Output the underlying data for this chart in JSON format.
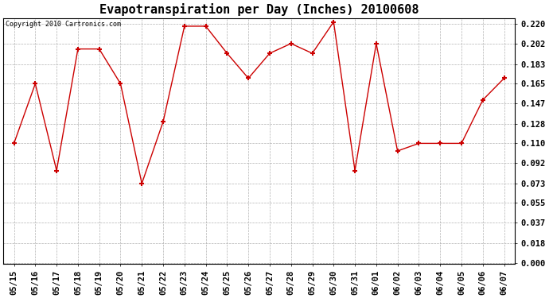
{
  "title": "Evapotranspiration per Day (Inches) 20100608",
  "copyright": "Copyright 2010 Cartronics.com",
  "x_labels": [
    "05/15",
    "05/16",
    "05/17",
    "05/18",
    "05/19",
    "05/20",
    "05/21",
    "05/22",
    "05/23",
    "05/24",
    "05/25",
    "05/26",
    "05/27",
    "05/28",
    "05/29",
    "05/30",
    "05/31",
    "06/01",
    "06/02",
    "06/03",
    "06/04",
    "06/05",
    "06/06",
    "06/07"
  ],
  "y_values": [
    0.11,
    0.165,
    0.085,
    0.197,
    0.197,
    0.165,
    0.073,
    0.13,
    0.218,
    0.218,
    0.193,
    0.17,
    0.193,
    0.202,
    0.193,
    0.222,
    0.085,
    0.202,
    0.103,
    0.11,
    0.11,
    0.11,
    0.15,
    0.17
  ],
  "line_color": "#cc0000",
  "marker": "+",
  "marker_size": 5,
  "marker_color": "#cc0000",
  "bg_color": "#ffffff",
  "plot_bg_color": "#ffffff",
  "grid_color": "#aaaaaa",
  "y_ticks": [
    0.0,
    0.018,
    0.037,
    0.055,
    0.073,
    0.092,
    0.11,
    0.128,
    0.147,
    0.165,
    0.183,
    0.202,
    0.22
  ],
  "ylim_min": -0.001,
  "ylim_max": 0.2255,
  "title_fontsize": 11,
  "copyright_fontsize": 6,
  "tick_fontsize": 7.5
}
